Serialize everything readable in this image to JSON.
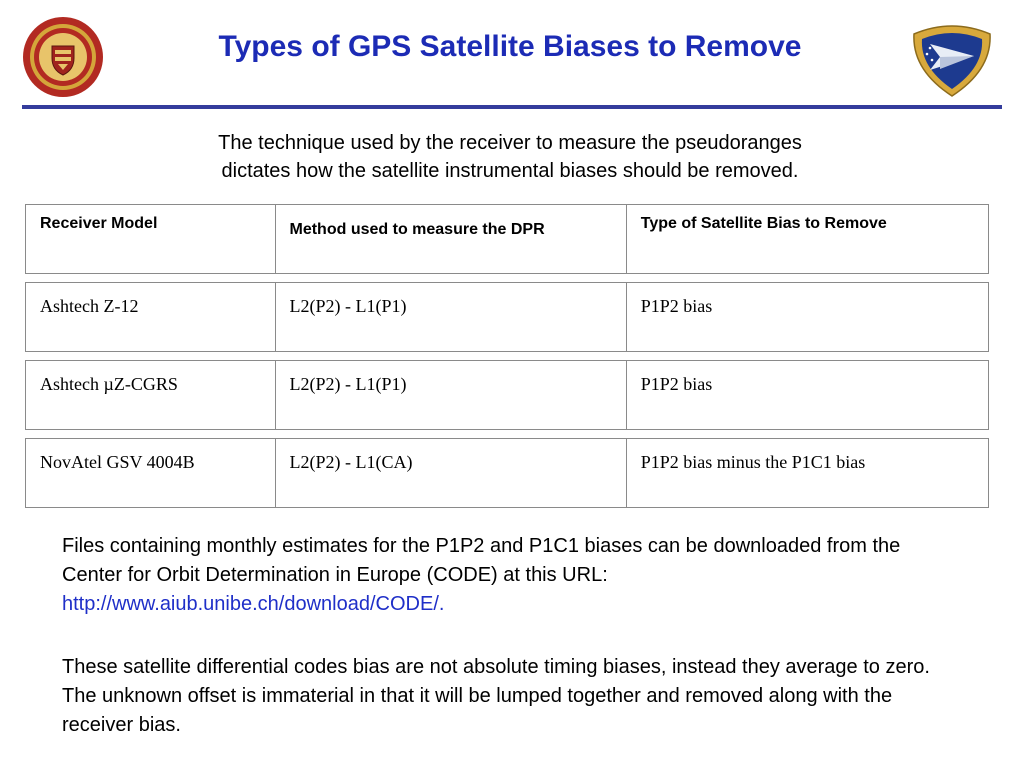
{
  "slide": {
    "title": "Types of GPS Satellite Biases to Remove",
    "intro_line1": "The technique used by the receiver to measure the pseudoranges",
    "intro_line2": "dictates how the satellite instrumental biases should be removed."
  },
  "table": {
    "headers": [
      "Receiver Model",
      "Method used to measure the DPR",
      "Type of Satellite Bias to Remove"
    ],
    "rows": [
      [
        "Ashtech Z-12",
        "L2(P2) - L1(P1)",
        "P1P2 bias"
      ],
      [
        "Ashtech µZ-CGRS",
        "L2(P2) - L1(P1)",
        "P1P2 bias"
      ],
      [
        "NovAtel GSV 4004B",
        "L2(P2) - L1(CA)",
        "P1P2 bias minus the P1C1 bias"
      ]
    ]
  },
  "paragraphs": {
    "p1_text": "Files containing monthly estimates for the P1P2 and P1C1 biases can be downloaded from the Center for Orbit Determination in Europe (CODE) at this URL: ",
    "p1_link": "http://www.aiub.unibe.ch/download/CODE/.",
    "p2_text": "These satellite differential codes bias are not absolute timing biases, instead they average to zero. The unknown offset is immaterial in that it will be lumped together and removed along with the receiver bias."
  },
  "logos": {
    "left": "boston-college-seal",
    "right": "air-force-research-laboratory-shield"
  },
  "colors": {
    "title": "#1c2bb5",
    "rule": "#343c9c",
    "link": "#1f2fc8",
    "seal_red": "#b22a22",
    "seal_gold": "#d4a63a"
  }
}
